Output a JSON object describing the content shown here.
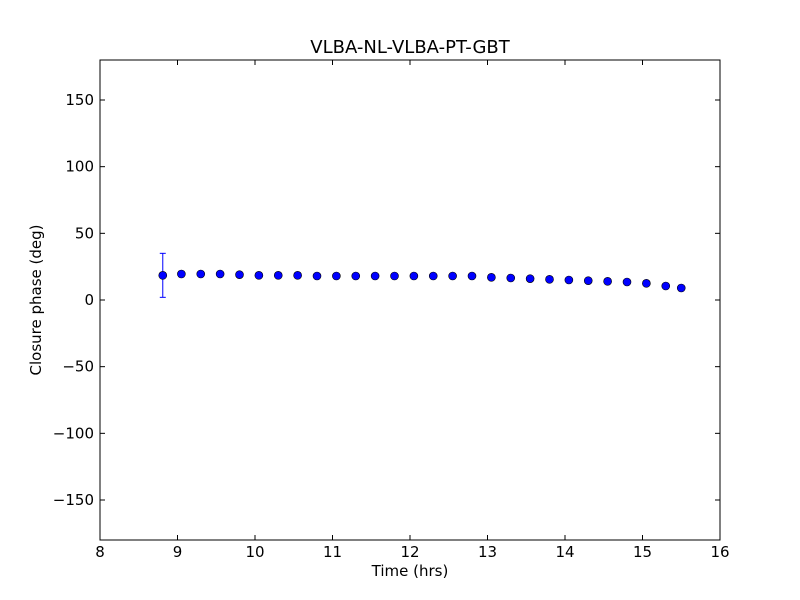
{
  "chart_data": {
    "type": "scatter",
    "title": "VLBA-NL-VLBA-PT-GBT",
    "xlabel": "Time (hrs)",
    "ylabel": "Closure phase (deg)",
    "xlim": [
      8,
      16
    ],
    "ylim": [
      -180,
      180
    ],
    "xticks": [
      8,
      9,
      10,
      11,
      12,
      13,
      14,
      15,
      16
    ],
    "xtick_labels": [
      "8",
      "9",
      "10",
      "11",
      "12",
      "13",
      "14",
      "15",
      "16"
    ],
    "yticks": [
      -150,
      -100,
      -50,
      0,
      50,
      100,
      150
    ],
    "ytick_labels": [
      "−150",
      "−100",
      "−50",
      "0",
      "50",
      "100",
      "150"
    ],
    "grid": false,
    "marker_color": "#0000ff",
    "errorbar_color": "#0000ff",
    "series": [
      {
        "points": [
          {
            "x": 8.81,
            "y": 18.5,
            "err": 16.5
          },
          {
            "x": 9.05,
            "y": 19.5,
            "err": 2.0
          },
          {
            "x": 9.3,
            "y": 19.5,
            "err": 1.5
          },
          {
            "x": 9.55,
            "y": 19.5,
            "err": 1.5
          },
          {
            "x": 9.8,
            "y": 19.0,
            "err": 1.5
          },
          {
            "x": 10.05,
            "y": 18.5,
            "err": 1.5
          },
          {
            "x": 10.3,
            "y": 18.5,
            "err": 1.5
          },
          {
            "x": 10.55,
            "y": 18.5,
            "err": 1.5
          },
          {
            "x": 10.8,
            "y": 18.0,
            "err": 1.5
          },
          {
            "x": 11.05,
            "y": 18.0,
            "err": 1.5
          },
          {
            "x": 11.3,
            "y": 18.0,
            "err": 1.5
          },
          {
            "x": 11.55,
            "y": 18.0,
            "err": 1.5
          },
          {
            "x": 11.8,
            "y": 18.0,
            "err": 1.5
          },
          {
            "x": 12.05,
            "y": 18.0,
            "err": 1.5
          },
          {
            "x": 12.3,
            "y": 18.0,
            "err": 1.5
          },
          {
            "x": 12.55,
            "y": 18.0,
            "err": 1.5
          },
          {
            "x": 12.8,
            "y": 18.0,
            "err": 1.5
          },
          {
            "x": 13.05,
            "y": 17.0,
            "err": 1.5
          },
          {
            "x": 13.3,
            "y": 16.5,
            "err": 1.5
          },
          {
            "x": 13.55,
            "y": 16.0,
            "err": 1.5
          },
          {
            "x": 13.8,
            "y": 15.5,
            "err": 1.5
          },
          {
            "x": 14.05,
            "y": 15.0,
            "err": 1.5
          },
          {
            "x": 14.3,
            "y": 14.5,
            "err": 1.5
          },
          {
            "x": 14.55,
            "y": 14.0,
            "err": 1.5
          },
          {
            "x": 14.8,
            "y": 13.5,
            "err": 1.5
          },
          {
            "x": 15.05,
            "y": 12.5,
            "err": 1.5
          },
          {
            "x": 15.3,
            "y": 10.5,
            "err": 1.5
          },
          {
            "x": 15.5,
            "y": 9.0,
            "err": 2.0
          }
        ]
      }
    ]
  }
}
